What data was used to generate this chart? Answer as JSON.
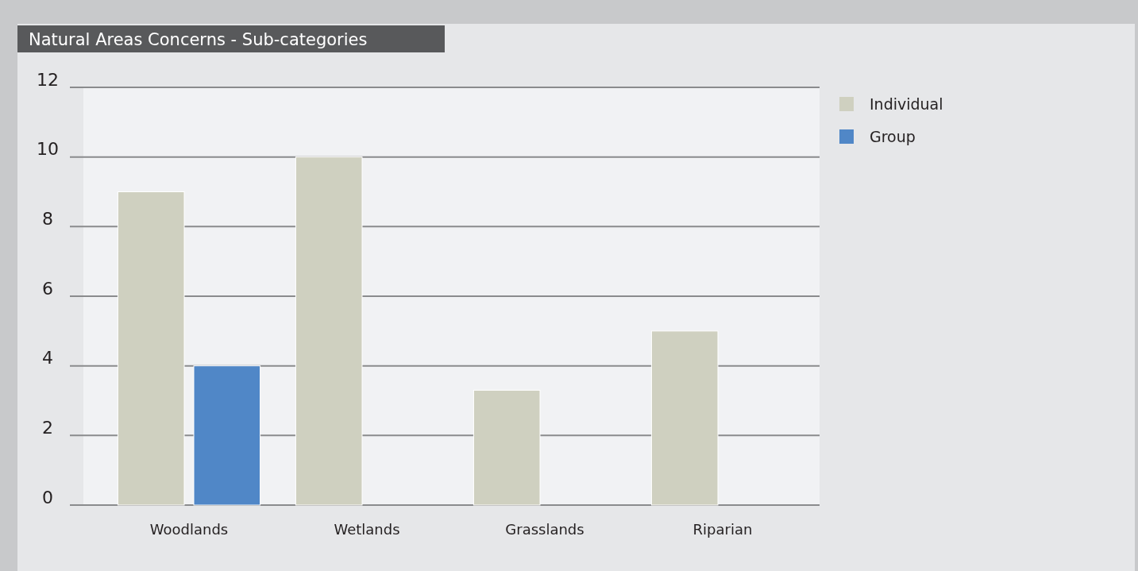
{
  "chart_data": {
    "type": "bar",
    "title": "Natural Areas Concerns - Sub-categories",
    "categories": [
      "Woodlands",
      "Wetlands",
      "Grasslands",
      "Riparian"
    ],
    "series": [
      {
        "name": "Individual",
        "color": "#cfd0c0",
        "values": [
          9,
          10,
          3.3,
          5
        ]
      },
      {
        "name": "Group",
        "color": "#5087c7",
        "values": [
          4,
          null,
          null,
          null
        ]
      }
    ],
    "ylim": [
      0,
      12
    ],
    "yticks": [
      0,
      2,
      4,
      6,
      8,
      10,
      12
    ],
    "grid": "y",
    "legend": "top right"
  }
}
